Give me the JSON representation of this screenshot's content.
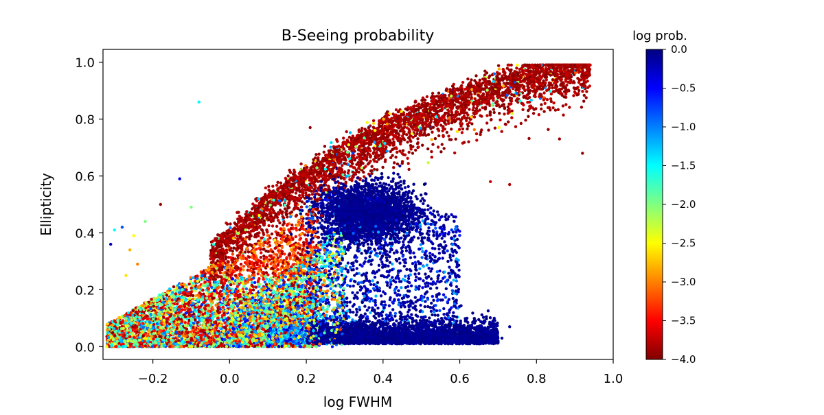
{
  "chart_data": {
    "type": "scatter",
    "title": "B-Seeing probability",
    "xlabel": "log FWHM",
    "ylabel": "Ellipticity",
    "xlim": [
      -0.33,
      1.0
    ],
    "ylim": [
      -0.045,
      1.045
    ],
    "xticks": [
      {
        "value": -0.2,
        "label": "−0.2"
      },
      {
        "value": 0.0,
        "label": "0.0"
      },
      {
        "value": 0.2,
        "label": "0.2"
      },
      {
        "value": 0.4,
        "label": "0.4"
      },
      {
        "value": 0.6,
        "label": "0.6"
      },
      {
        "value": 0.8,
        "label": "0.8"
      },
      {
        "value": 1.0,
        "label": "1.0"
      }
    ],
    "yticks": [
      {
        "value": 0.0,
        "label": "0.0"
      },
      {
        "value": 0.2,
        "label": "0.2"
      },
      {
        "value": 0.4,
        "label": "0.4"
      },
      {
        "value": 0.6,
        "label": "0.6"
      },
      {
        "value": 0.8,
        "label": "0.8"
      },
      {
        "value": 1.0,
        "label": "1.0"
      }
    ],
    "grid": false,
    "colorbar": {
      "title": "log prob.",
      "colormap": "jet",
      "range": [
        -4.0,
        0.0
      ],
      "ticks": [
        {
          "value": 0.0,
          "label": "0.0"
        },
        {
          "value": -0.5,
          "label": "−0.5"
        },
        {
          "value": -1.0,
          "label": "−1.0"
        },
        {
          "value": -1.5,
          "label": "−1.5"
        },
        {
          "value": -2.0,
          "label": "−2.0"
        },
        {
          "value": -2.5,
          "label": "−2.5"
        },
        {
          "value": -3.0,
          "label": "−3.0"
        },
        {
          "value": -3.5,
          "label": "−3.5"
        },
        {
          "value": -4.0,
          "label": "−4.0"
        }
      ],
      "stops": [
        "#800000",
        "#ff0000",
        "#ff8000",
        "#ffff00",
        "#80ff80",
        "#00ffff",
        "#0080ff",
        "#0000ff",
        "#000080"
      ]
    },
    "point_groups": [
      {
        "region": "low-ellipticity high-probability band",
        "x": [
          0.05,
          0.7
        ],
        "y": [
          0.0,
          0.1
        ],
        "log_prob": [
          -0.3,
          0.0
        ]
      },
      {
        "region": "mid-FWHM high-probability cloud",
        "x": [
          0.25,
          0.6
        ],
        "y": [
          0.1,
          0.55
        ],
        "log_prob": [
          -0.5,
          0.0
        ]
      },
      {
        "region": "upper ridge low-probability arc",
        "x": [
          0.0,
          0.94
        ],
        "y": [
          0.3,
          0.95
        ],
        "log_prob": [
          -4.0,
          -3.5
        ]
      },
      {
        "region": "small-FWHM mixed-probability cluster",
        "x": [
          -0.32,
          0.2
        ],
        "y": [
          0.0,
          0.45
        ],
        "log_prob": [
          -4.0,
          -1.0
        ]
      }
    ],
    "points": [
      {
        "x": -0.08,
        "y": 0.86,
        "v": -1.5
      },
      {
        "x": -0.3,
        "y": 0.41,
        "v": -1.5
      },
      {
        "x": -0.28,
        "y": 0.42,
        "v": -0.8
      },
      {
        "x": -0.25,
        "y": 0.39,
        "v": -2.5
      },
      {
        "x": -0.22,
        "y": 0.44,
        "v": -2.0
      },
      {
        "x": -0.13,
        "y": 0.59,
        "v": -0.4
      },
      {
        "x": -0.27,
        "y": 0.25,
        "v": -2.6
      },
      {
        "x": -0.24,
        "y": 0.29,
        "v": -3.0
      },
      {
        "x": -0.31,
        "y": 0.36,
        "v": -0.2
      },
      {
        "x": -0.26,
        "y": 0.34,
        "v": -2.8
      },
      {
        "x": -0.1,
        "y": 0.49,
        "v": -2.0
      },
      {
        "x": 0.75,
        "y": 0.99,
        "v": -2.5
      },
      {
        "x": 0.9,
        "y": 0.99,
        "v": -4.0
      },
      {
        "x": 0.92,
        "y": 0.68,
        "v": -3.9
      },
      {
        "x": 0.86,
        "y": 0.73,
        "v": -3.9
      },
      {
        "x": 0.73,
        "y": 0.57,
        "v": -3.8
      },
      {
        "x": 0.68,
        "y": 0.58,
        "v": -3.7
      },
      {
        "x": 0.71,
        "y": 0.03,
        "v": -0.1
      },
      {
        "x": 0.69,
        "y": 0.1,
        "v": -0.1
      },
      {
        "x": 0.73,
        "y": 0.07,
        "v": -0.1
      },
      {
        "x": 0.21,
        "y": 0.77,
        "v": -3.9
      },
      {
        "x": 0.3,
        "y": 0.35,
        "v": -0.2
      },
      {
        "x": -0.18,
        "y": 0.5,
        "v": -3.9
      }
    ]
  }
}
